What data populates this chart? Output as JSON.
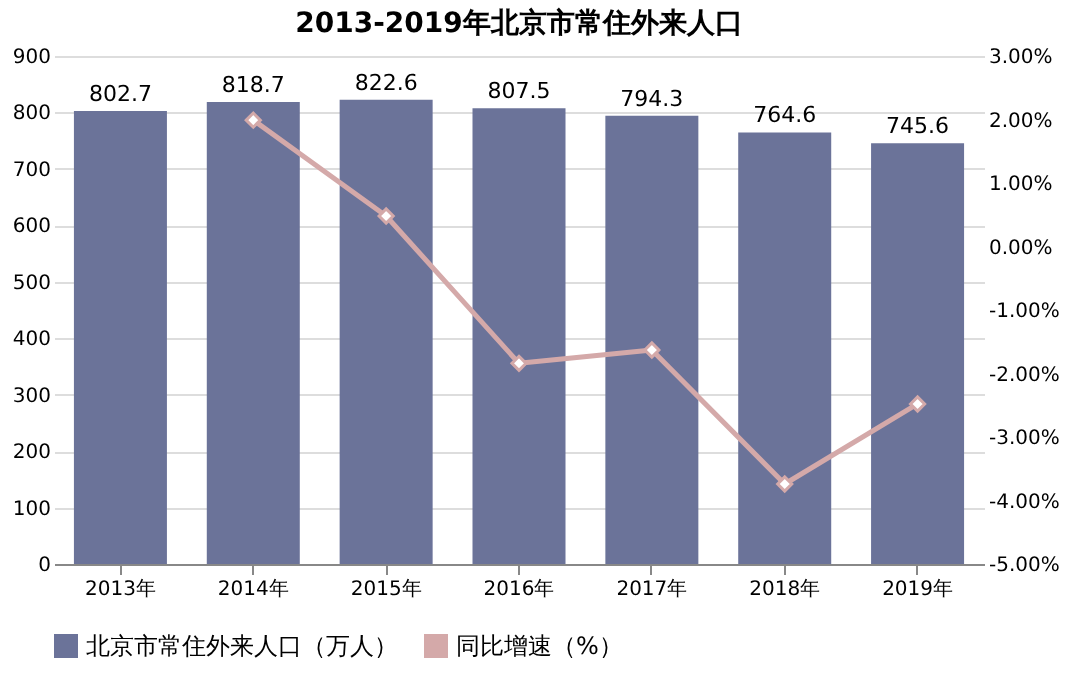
{
  "chart_data": {
    "type": "bar",
    "title": "2013-2019年北京市常住外来人口",
    "categories": [
      "2013年",
      "2014年",
      "2015年",
      "2016年",
      "2017年",
      "2018年",
      "2019年"
    ],
    "series": [
      {
        "name": "北京市常住外来人口（万人）",
        "color": "#6b7399",
        "values": [
          802.7,
          818.7,
          822.6,
          807.5,
          794.3,
          764.6,
          745.6
        ],
        "value_labels": [
          "802.7",
          "818.7",
          "822.6",
          "807.5",
          "794.3",
          "764.6",
          "745.6"
        ]
      },
      {
        "name": "同比增速（%）",
        "type": "line",
        "axis": "y2",
        "color": "#d4a9a9",
        "marker": "diamond",
        "values": [
          null,
          1.99,
          0.48,
          -1.84,
          -1.63,
          -3.74,
          -2.48
        ]
      }
    ],
    "ylim": [
      0,
      900
    ],
    "yticks": [
      0,
      100,
      200,
      300,
      400,
      500,
      600,
      700,
      800,
      900
    ],
    "y2lim": [
      -5,
      3
    ],
    "y2ticks": [
      {
        "value": -5,
        "label": "-5.00%"
      },
      {
        "value": -4,
        "label": "-4.00%"
      },
      {
        "value": -3,
        "label": "-3.00%"
      },
      {
        "value": -2,
        "label": "-2.00%"
      },
      {
        "value": -1,
        "label": "-1.00%"
      },
      {
        "value": 0,
        "label": "0.00%"
      },
      {
        "value": 1,
        "label": "1.00%"
      },
      {
        "value": 2,
        "label": "2.00%"
      },
      {
        "value": 3,
        "label": "3.00%"
      }
    ],
    "grid": "y",
    "legend": "bottom"
  }
}
